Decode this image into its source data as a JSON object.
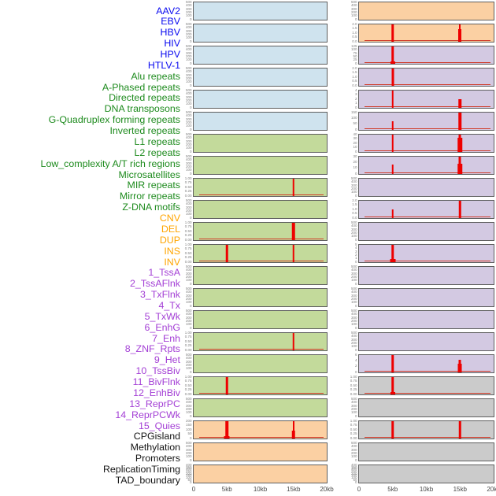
{
  "figure_title": "",
  "colors": {
    "spike_red": "#ee0000",
    "baseline_red": "#d03a28",
    "panel_border": "#5f5f5f",
    "tick_text": "#828282",
    "axis_text": "#4a4a4a"
  },
  "groups": {
    "virus": {
      "label_color": "#0a0af0",
      "panel_bg": "#cfe3ee"
    },
    "repeats": {
      "label_color": "#1e8b1e",
      "panel_bg": "#c3da9b"
    },
    "sv": {
      "label_color": "#ffa500",
      "panel_bg": "#fbd0a3"
    },
    "chromatin": {
      "label_color": "#a33ed5",
      "panel_bg": "#d3c9e2"
    },
    "other": {
      "label_color": "#141414",
      "panel_bg": "#cbcbcb"
    }
  },
  "x_axis": {
    "labels": [
      "0",
      "5kb",
      "10kb",
      "15kb",
      "20kb"
    ],
    "range_kb": [
      0,
      20
    ]
  },
  "chart_data": {
    "type": "area",
    "x_range_kb": [
      0,
      20
    ],
    "x_tick_labels": [
      "0",
      "5kb",
      "10kb",
      "15kb",
      "20kb"
    ],
    "layout": "two columns of 22 stacked signal tracks; labels listed left, first 22 labels = left column top-to-bottom, last 22 = right column",
    "tracks": [
      {
        "name": "AAV2",
        "group": "virus",
        "ymax": 500,
        "yticks": [
          "500",
          "400",
          "300",
          "200",
          "100",
          "0"
        ],
        "baseline": false,
        "peaks": []
      },
      {
        "name": "EBV",
        "group": "virus",
        "ymax": 500,
        "yticks": [
          "500",
          "400",
          "300",
          "200",
          "100",
          "0"
        ],
        "baseline": false,
        "peaks": []
      },
      {
        "name": "HBV",
        "group": "virus",
        "ymax": 500,
        "yticks": [
          "500",
          "400",
          "300",
          "200",
          "100",
          "0"
        ],
        "baseline": false,
        "peaks": []
      },
      {
        "name": "HIV",
        "group": "virus",
        "ymax": 500,
        "yticks": [
          "500",
          "400",
          "300",
          "200",
          "100",
          "0"
        ],
        "baseline": false,
        "peaks": []
      },
      {
        "name": "HPV",
        "group": "virus",
        "ymax": 500,
        "yticks": [
          "500",
          "400",
          "300",
          "200",
          "100",
          "0"
        ],
        "baseline": false,
        "peaks": []
      },
      {
        "name": "HTLV-1",
        "group": "virus",
        "ymax": 500,
        "yticks": [
          "500",
          "400",
          "300",
          "200",
          "100",
          "0"
        ],
        "baseline": false,
        "peaks": []
      },
      {
        "name": "Alu repeats",
        "group": "repeats",
        "ymax": 500,
        "yticks": [
          "500",
          "400",
          "300",
          "200",
          "100",
          "0"
        ],
        "baseline": false,
        "peaks": []
      },
      {
        "name": "A-Phased repeats",
        "group": "repeats",
        "ymax": 500,
        "yticks": [
          "500",
          "400",
          "300",
          "200",
          "100",
          "0"
        ],
        "baseline": false,
        "peaks": []
      },
      {
        "name": "Directed repeats",
        "group": "repeats",
        "ymax": 1,
        "yticks": [
          "1.00",
          "0.75",
          "0.50",
          "0.25",
          "0.00"
        ],
        "baseline": true,
        "peaks": [
          {
            "kb": 15,
            "value": 1.0,
            "w": 2.5
          }
        ]
      },
      {
        "name": "DNA transposons",
        "group": "repeats",
        "ymax": 500,
        "yticks": [
          "500",
          "400",
          "300",
          "200",
          "100",
          "0"
        ],
        "baseline": false,
        "peaks": []
      },
      {
        "name": "G-Quadruplex forming repeats",
        "group": "repeats",
        "ymax": 1,
        "yticks": [
          "1.00",
          "0.75",
          "0.50",
          "0.25",
          "0.00"
        ],
        "baseline": true,
        "peaks": [
          {
            "kb": 15,
            "value": 1.0,
            "w": 4.5
          }
        ]
      },
      {
        "name": "Inverted repeats",
        "group": "repeats",
        "ymax": 1,
        "yticks": [
          "1.00",
          "0.75",
          "0.50",
          "0.25",
          "0.00"
        ],
        "baseline": true,
        "peaks": [
          {
            "kb": 5,
            "value": 1.0,
            "w": 2.5
          },
          {
            "kb": 15,
            "value": 1.0,
            "w": 2.5
          }
        ]
      },
      {
        "name": "L1 repeats",
        "group": "repeats",
        "ymax": 500,
        "yticks": [
          "500",
          "400",
          "300",
          "200",
          "100",
          "0"
        ],
        "baseline": false,
        "peaks": []
      },
      {
        "name": "L2 repeats",
        "group": "repeats",
        "ymax": 500,
        "yticks": [
          "500",
          "400",
          "300",
          "200",
          "100",
          "0"
        ],
        "baseline": false,
        "peaks": []
      },
      {
        "name": "Low_complexity A/T rich regions",
        "group": "repeats",
        "ymax": 500,
        "yticks": [
          "500",
          "400",
          "300",
          "200",
          "100",
          "0"
        ],
        "baseline": false,
        "peaks": []
      },
      {
        "name": "Microsatellites",
        "group": "repeats",
        "ymax": 1,
        "yticks": [
          "1.00",
          "0.75",
          "0.50",
          "0.25",
          "0.00"
        ],
        "baseline": true,
        "peaks": [
          {
            "kb": 15,
            "value": 1.0,
            "w": 2.5
          }
        ]
      },
      {
        "name": "MIR repeats",
        "group": "repeats",
        "ymax": 500,
        "yticks": [
          "500",
          "400",
          "300",
          "200",
          "100",
          "0"
        ],
        "baseline": false,
        "peaks": []
      },
      {
        "name": "Mirror repeats",
        "group": "repeats",
        "ymax": 1,
        "yticks": [
          "1.00",
          "0.75",
          "0.50",
          "0.25",
          "0.00"
        ],
        "baseline": true,
        "peaks": [
          {
            "kb": 5,
            "value": 1.0,
            "w": 2.5
          }
        ]
      },
      {
        "name": "Z-DNA motifs",
        "group": "repeats",
        "ymax": 500,
        "yticks": [
          "500",
          "400",
          "300",
          "200",
          "100",
          "0"
        ],
        "baseline": false,
        "peaks": []
      },
      {
        "name": "CNV",
        "group": "sv",
        "ymax": 200,
        "yticks": [
          "200",
          "150",
          "100",
          "50",
          "0"
        ],
        "baseline": true,
        "peaks": [
          {
            "kb": 5,
            "value": 200,
            "w": 3.5
          },
          {
            "kb": 5,
            "value": 25,
            "w": 7
          },
          {
            "kb": 15,
            "value": 200,
            "w": 2
          },
          {
            "kb": 15,
            "value": 90,
            "w": 4.5
          }
        ]
      },
      {
        "name": "DEL",
        "group": "sv",
        "ymax": 500,
        "yticks": [
          "500",
          "400",
          "300",
          "200",
          "100",
          "0"
        ],
        "baseline": false,
        "peaks": []
      },
      {
        "name": "DUP",
        "group": "sv",
        "ymax": 400,
        "yticks": [
          "400",
          "350",
          "300",
          "250",
          "200",
          "150",
          "100",
          "50",
          "0"
        ],
        "baseline": false,
        "peaks": []
      },
      {
        "name": "INS",
        "group": "sv",
        "ymax": 500,
        "yticks": [
          "500",
          "400",
          "300",
          "200",
          "100",
          "0"
        ],
        "baseline": false,
        "peaks": []
      },
      {
        "name": "INV",
        "group": "sv",
        "ymax": 2,
        "yticks": [
          "2.0",
          "1.5",
          "1.0",
          "0.5",
          "0.0"
        ],
        "baseline": true,
        "peaks": [
          {
            "kb": 5,
            "value": 2.0,
            "w": 3.5
          },
          {
            "kb": 15,
            "value": 2.0,
            "w": 2
          },
          {
            "kb": 15,
            "value": 1.4,
            "w": 4
          }
        ]
      },
      {
        "name": "1_TssA",
        "group": "chromatin",
        "ymax": 125,
        "yticks": [
          "125",
          "100",
          "75",
          "50",
          "25",
          "0"
        ],
        "baseline": true,
        "peaks": [
          {
            "kb": 5,
            "value": 125,
            "w": 3.5
          },
          {
            "kb": 5,
            "value": 12,
            "w": 6
          }
        ]
      },
      {
        "name": "2_TssAFlnk",
        "group": "chromatin",
        "ymax": 2,
        "yticks": [
          "2.0",
          "1.5",
          "1.0",
          "0.5",
          "0.0"
        ],
        "baseline": true,
        "peaks": [
          {
            "kb": 5,
            "value": 2.0,
            "w": 3
          }
        ]
      },
      {
        "name": "3_TxFlnk",
        "group": "chromatin",
        "ymax": 4,
        "yticks": [
          "4",
          "3",
          "2",
          "1",
          "0"
        ],
        "baseline": true,
        "peaks": [
          {
            "kb": 5,
            "value": 4,
            "w": 2.5
          },
          {
            "kb": 15,
            "value": 2,
            "w": 3.5
          }
        ]
      },
      {
        "name": "4_Tx",
        "group": "chromatin",
        "ymax": 150,
        "yticks": [
          "150",
          "100",
          "50",
          "0"
        ],
        "baseline": true,
        "peaks": [
          {
            "kb": 5,
            "value": 75,
            "w": 2.5
          },
          {
            "kb": 15,
            "value": 150,
            "w": 3.5
          }
        ]
      },
      {
        "name": "5_TxWk",
        "group": "chromatin",
        "ymax": 40,
        "yticks": [
          "40",
          "30",
          "20",
          "10",
          "0"
        ],
        "baseline": true,
        "peaks": [
          {
            "kb": 5,
            "value": 40,
            "w": 2.5
          },
          {
            "kb": 15,
            "value": 40,
            "w": 3
          },
          {
            "kb": 15,
            "value": 32,
            "w": 5.5
          }
        ]
      },
      {
        "name": "6_EnhG",
        "group": "chromatin",
        "ymax": 30,
        "yticks": [
          "30",
          "20",
          "10",
          "0"
        ],
        "baseline": true,
        "peaks": [
          {
            "kb": 5,
            "value": 16,
            "w": 2.5
          },
          {
            "kb": 15,
            "value": 30,
            "w": 3
          },
          {
            "kb": 15,
            "value": 18,
            "w": 5.5
          }
        ]
      },
      {
        "name": "7_Enh",
        "group": "chromatin",
        "ymax": 500,
        "yticks": [
          "500",
          "400",
          "300",
          "200",
          "100",
          "0"
        ],
        "baseline": false,
        "peaks": []
      },
      {
        "name": "8_ZNF_Rpts",
        "group": "chromatin",
        "ymax": 2,
        "yticks": [
          "2.0",
          "1.5",
          "1.0",
          "0.5",
          "0.0"
        ],
        "baseline": true,
        "peaks": [
          {
            "kb": 5,
            "value": 1.0,
            "w": 2.5
          },
          {
            "kb": 15,
            "value": 2.0,
            "w": 2.5
          }
        ]
      },
      {
        "name": "9_Het",
        "group": "chromatin",
        "ymax": 500,
        "yticks": [
          "500",
          "400",
          "300",
          "200",
          "100",
          "0"
        ],
        "baseline": false,
        "peaks": []
      },
      {
        "name": "10_TssBiv",
        "group": "chromatin",
        "ymax": 5,
        "yticks": [
          "5",
          "4",
          "3",
          "2",
          "1",
          "0"
        ],
        "baseline": true,
        "peaks": [
          {
            "kb": 5,
            "value": 5,
            "w": 3.5
          },
          {
            "kb": 5,
            "value": 0.8,
            "w": 7
          }
        ]
      },
      {
        "name": "11_BivFlnk",
        "group": "chromatin",
        "ymax": 500,
        "yticks": [
          "500",
          "400",
          "300",
          "200",
          "100",
          "0"
        ],
        "baseline": false,
        "peaks": []
      },
      {
        "name": "12_EnhBiv",
        "group": "chromatin",
        "ymax": 500,
        "yticks": [
          "500",
          "400",
          "300",
          "200",
          "100",
          "0"
        ],
        "baseline": false,
        "peaks": []
      },
      {
        "name": "13_ReprPC",
        "group": "chromatin",
        "ymax": 500,
        "yticks": [
          "500",
          "400",
          "300",
          "200",
          "100",
          "0"
        ],
        "baseline": false,
        "peaks": []
      },
      {
        "name": "14_ReprPCWk",
        "group": "chromatin",
        "ymax": 500,
        "yticks": [
          "500",
          "400",
          "300",
          "200",
          "100",
          "0"
        ],
        "baseline": false,
        "peaks": []
      },
      {
        "name": "15_Quies",
        "group": "chromatin",
        "ymax": 6,
        "yticks": [
          "6",
          "4",
          "2",
          "0"
        ],
        "baseline": true,
        "peaks": [
          {
            "kb": 5,
            "value": 6,
            "w": 3.5
          },
          {
            "kb": 15,
            "value": 4.3,
            "w": 3
          },
          {
            "kb": 15,
            "value": 3,
            "w": 5
          }
        ]
      },
      {
        "name": "CPGisland",
        "group": "other",
        "ymax": 1,
        "yticks": [
          "1.00",
          "0.75",
          "0.50",
          "0.25",
          "0.00"
        ],
        "baseline": true,
        "peaks": [
          {
            "kb": 5,
            "value": 1.0,
            "w": 3.5
          },
          {
            "kb": 5,
            "value": 0.1,
            "w": 6
          }
        ]
      },
      {
        "name": "Methylation",
        "group": "other",
        "ymax": 500,
        "yticks": [
          "500",
          "400",
          "300",
          "200",
          "100",
          "0"
        ],
        "baseline": false,
        "peaks": []
      },
      {
        "name": "Promoters",
        "group": "other",
        "ymax": 1,
        "yticks": [
          "1.00",
          "0.75",
          "0.50",
          "0.25",
          "0.00"
        ],
        "baseline": true,
        "peaks": [
          {
            "kb": 5,
            "value": 1.0,
            "w": 3.5
          },
          {
            "kb": 15,
            "value": 1.0,
            "w": 2.5
          }
        ]
      },
      {
        "name": "ReplicationTiming",
        "group": "other",
        "ymax": 500,
        "yticks": [
          "500",
          "400",
          "300",
          "200",
          "100",
          "0"
        ],
        "baseline": false,
        "peaks": []
      },
      {
        "name": "TAD_boundary",
        "group": "other",
        "ymax": 400,
        "yticks": [
          "400",
          "350",
          "300",
          "250",
          "200",
          "150",
          "100",
          "50",
          "0"
        ],
        "baseline": false,
        "peaks": []
      }
    ]
  }
}
